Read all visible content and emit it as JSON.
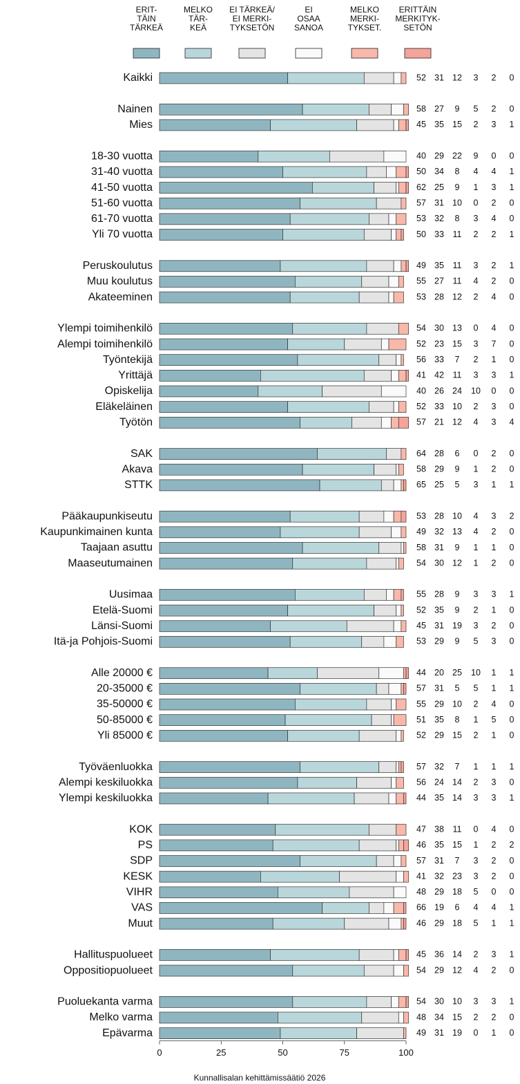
{
  "chart_data": {
    "type": "stacked_barh",
    "categories": [
      "Kaikki",
      null,
      "Nainen",
      "Mies",
      null,
      "18-30 vuotta",
      "31-40 vuotta",
      "41-50 vuotta",
      "51-60 vuotta",
      "61-70 vuotta",
      "Yli 70 vuotta",
      null,
      "Peruskoulutus",
      "Muu koulutus",
      "Akateeminen",
      null,
      "Ylempi toimihenkilö",
      "Alempi toimihenkilö",
      "Työntekijä",
      "Yrittäjä",
      "Opiskelija",
      "Eläkeläinen",
      "Työtön",
      null,
      "SAK",
      "Akava",
      "STTK",
      null,
      "Pääkaupunkiseutu",
      "Kaupunkimainen kunta",
      "Taajaan asuttu",
      "Maaseutumainen",
      null,
      "Uusimaa",
      "Etelä-Suomi",
      "Länsi-Suomi",
      "Itä-ja Pohjois-Suomi",
      null,
      "Alle 20000 €",
      "20-35000 €",
      "35-50000 €",
      "50-85000 €",
      "Yli 85000 €",
      null,
      "Työväenluokka",
      "Alempi keskiluokka",
      "Ylempi keskiluokka",
      null,
      "KOK",
      "PS",
      "SDP",
      "KESK",
      "VIHR",
      "VAS",
      "Muut",
      null,
      "Hallituspuolueet",
      "Oppositiopuolueet",
      null,
      "Puoluekanta varma",
      "Melko varma",
      "Epävarma"
    ],
    "series": [
      {
        "name": "ERIT-\nTÄIN\nTÄRKEÄ",
        "color": "#8fb6c0",
        "values": [
          52,
          null,
          58,
          45,
          null,
          40,
          50,
          62,
          57,
          53,
          50,
          null,
          49,
          55,
          53,
          null,
          54,
          52,
          56,
          41,
          40,
          52,
          57,
          null,
          64,
          58,
          65,
          null,
          53,
          49,
          58,
          54,
          null,
          55,
          52,
          45,
          53,
          null,
          44,
          57,
          55,
          51,
          52,
          null,
          57,
          56,
          44,
          null,
          47,
          46,
          57,
          41,
          48,
          66,
          46,
          null,
          45,
          54,
          null,
          54,
          48,
          49
        ]
      },
      {
        "name": "MELKO\nTÄR-\nKEÄ",
        "color": "#b9d7db",
        "values": [
          31,
          null,
          27,
          35,
          null,
          29,
          34,
          25,
          31,
          32,
          33,
          null,
          35,
          27,
          28,
          null,
          30,
          23,
          33,
          42,
          26,
          33,
          21,
          null,
          28,
          29,
          25,
          null,
          28,
          32,
          31,
          30,
          null,
          28,
          35,
          31,
          29,
          null,
          20,
          31,
          29,
          35,
          29,
          null,
          32,
          24,
          35,
          null,
          38,
          35,
          31,
          32,
          29,
          19,
          29,
          null,
          36,
          29,
          null,
          30,
          34,
          31
        ]
      },
      {
        "name": "EI TÄRKEÄ/\nEI MERKI-\nTYKSETÖN",
        "color": "#e4e4e4",
        "values": [
          12,
          null,
          9,
          15,
          null,
          22,
          8,
          9,
          10,
          8,
          11,
          null,
          11,
          11,
          12,
          null,
          13,
          15,
          7,
          11,
          24,
          10,
          12,
          null,
          6,
          9,
          5,
          null,
          10,
          13,
          9,
          12,
          null,
          9,
          9,
          19,
          9,
          null,
          25,
          5,
          10,
          8,
          15,
          null,
          7,
          14,
          14,
          null,
          11,
          15,
          7,
          23,
          18,
          6,
          18,
          null,
          14,
          12,
          null,
          10,
          15,
          19
        ]
      },
      {
        "name": "EI\nOSAA\nSANOA",
        "color": "#fafafa",
        "values": [
          3,
          null,
          5,
          2,
          null,
          9,
          4,
          1,
          0,
          3,
          2,
          null,
          3,
          4,
          2,
          null,
          0,
          3,
          2,
          3,
          10,
          2,
          4,
          null,
          0,
          1,
          3,
          null,
          4,
          4,
          1,
          1,
          null,
          3,
          2,
          3,
          5,
          null,
          10,
          5,
          2,
          1,
          2,
          null,
          1,
          2,
          3,
          null,
          0,
          1,
          3,
          3,
          5,
          4,
          5,
          null,
          2,
          4,
          null,
          3,
          2,
          0
        ]
      },
      {
        "name": "MELKO\nMERKI-\nTYKSET.",
        "color": "#f8b8aa",
        "values": [
          2,
          null,
          2,
          3,
          null,
          0,
          4,
          3,
          2,
          4,
          2,
          null,
          2,
          2,
          4,
          null,
          4,
          7,
          1,
          3,
          0,
          3,
          3,
          null,
          2,
          2,
          1,
          null,
          3,
          2,
          1,
          2,
          null,
          3,
          1,
          2,
          3,
          null,
          1,
          1,
          4,
          5,
          1,
          null,
          1,
          3,
          3,
          null,
          4,
          2,
          2,
          2,
          0,
          4,
          1,
          null,
          3,
          2,
          null,
          3,
          2,
          1
        ]
      },
      {
        "name": "ERITTÄIN\nMERKITYK-\nSETÖN",
        "color": "#f4a49a",
        "values": [
          0,
          null,
          0,
          1,
          null,
          0,
          1,
          1,
          0,
          0,
          1,
          null,
          1,
          0,
          0,
          null,
          0,
          0,
          0,
          1,
          0,
          0,
          4,
          null,
          0,
          0,
          1,
          null,
          2,
          0,
          0,
          0,
          null,
          1,
          0,
          0,
          0,
          null,
          1,
          1,
          0,
          0,
          0,
          null,
          1,
          0,
          1,
          null,
          0,
          2,
          0,
          0,
          0,
          1,
          1,
          null,
          1,
          0,
          null,
          1,
          0,
          0
        ]
      }
    ],
    "xlim": [
      0,
      100
    ],
    "xticks": [
      0,
      25,
      50,
      75,
      100
    ],
    "source": "Kunnallisalan kehittämissäätiö 2026"
  }
}
